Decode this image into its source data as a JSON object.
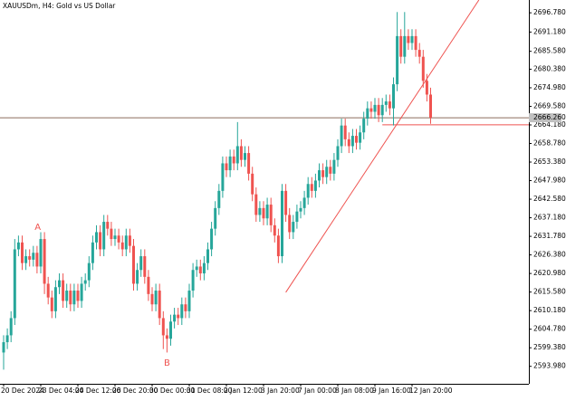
{
  "chart_data": {
    "type": "candlestick",
    "title": "XAUUSDm, H4:  Gold vs US Dollar",
    "up_color": "#26a69a",
    "down_color": "#ef5350",
    "open": [
      2598,
      2601,
      2603,
      2608,
      2628,
      2630,
      2624,
      2626,
      2625,
      2627,
      2623,
      2631,
      2618,
      2614,
      2610,
      2617,
      2619,
      2613,
      2616,
      2612,
      2616,
      2613,
      2618,
      2619,
      2624,
      2630,
      2633,
      2628,
      2636,
      2634,
      2631,
      2632,
      2630,
      2628,
      2632,
      2629,
      2618,
      2622,
      2626,
      2620,
      2615,
      2612,
      2616,
      2608,
      2603,
      2602,
      2607,
      2609,
      2608,
      2612,
      2610,
      2616,
      2622,
      2623,
      2621,
      2624,
      2628,
      2634,
      2640,
      2645,
      2653,
      2651,
      2655,
      2653,
      2658,
      2654,
      2656,
      2650,
      2644,
      2638,
      2640,
      2637,
      2641,
      2635,
      2632,
      2626,
      2645,
      2638,
      2633,
      2636,
      2639,
      2640,
      2643,
      2647,
      2645,
      2648,
      2651,
      2649,
      2652,
      2650,
      2654,
      2658,
      2664,
      2660,
      2658,
      2661,
      2659,
      2662,
      2666,
      2669,
      2668,
      2670,
      2667,
      2670,
      2671,
      2669,
      2676,
      2690,
      2684,
      2690,
      2688,
      2690,
      2686,
      2684,
      2677,
      2673
    ],
    "high": [
      2603,
      2605,
      2610,
      2631,
      2632,
      2632,
      2628,
      2628,
      2629,
      2629,
      2633,
      2633,
      2620,
      2616,
      2619,
      2621,
      2621,
      2618,
      2618,
      2618,
      2618,
      2620,
      2621,
      2626,
      2632,
      2635,
      2635,
      2638,
      2638,
      2636,
      2634,
      2634,
      2632,
      2634,
      2634,
      2631,
      2624,
      2628,
      2628,
      2622,
      2617,
      2618,
      2618,
      2610,
      2605,
      2609,
      2611,
      2611,
      2614,
      2614,
      2618,
      2624,
      2625,
      2625,
      2626,
      2630,
      2636,
      2642,
      2647,
      2655,
      2655,
      2657,
      2657,
      2665,
      2660,
      2658,
      2658,
      2652,
      2646,
      2642,
      2642,
      2643,
      2643,
      2637,
      2634,
      2647,
      2647,
      2640,
      2638,
      2641,
      2642,
      2645,
      2649,
      2649,
      2650,
      2653,
      2653,
      2654,
      2654,
      2656,
      2660,
      2666,
      2666,
      2662,
      2663,
      2663,
      2664,
      2668,
      2671,
      2671,
      2672,
      2672,
      2672,
      2673,
      2673,
      2678,
      2697,
      2692,
      2697,
      2692,
      2692,
      2692,
      2688,
      2686,
      2679,
      2675
    ],
    "low": [
      2593,
      2599,
      2601,
      2606,
      2626,
      2622,
      2622,
      2623,
      2623,
      2621,
      2621,
      2615,
      2612,
      2608,
      2608,
      2615,
      2611,
      2611,
      2610,
      2610,
      2611,
      2611,
      2616,
      2617,
      2622,
      2628,
      2626,
      2626,
      2632,
      2629,
      2629,
      2628,
      2626,
      2626,
      2627,
      2616,
      2616,
      2620,
      2618,
      2613,
      2610,
      2610,
      2606,
      2599,
      2598,
      2600,
      2605,
      2606,
      2606,
      2608,
      2608,
      2614,
      2620,
      2619,
      2619,
      2622,
      2626,
      2632,
      2638,
      2643,
      2649,
      2649,
      2651,
      2651,
      2652,
      2652,
      2648,
      2642,
      2636,
      2636,
      2635,
      2635,
      2633,
      2630,
      2624,
      2624,
      2636,
      2631,
      2631,
      2634,
      2637,
      2638,
      2641,
      2643,
      2643,
      2646,
      2647,
      2647,
      2648,
      2648,
      2652,
      2656,
      2658,
      2656,
      2656,
      2657,
      2657,
      2660,
      2664,
      2666,
      2666,
      2665,
      2665,
      2668,
      2667,
      2664,
      2674,
      2682,
      2682,
      2686,
      2686,
      2684,
      2682,
      2675,
      2671,
      2664.5
    ],
    "close": [
      2601,
      2603,
      2608,
      2628,
      2630,
      2624,
      2626,
      2625,
      2627,
      2623,
      2631,
      2618,
      2614,
      2610,
      2617,
      2619,
      2613,
      2616,
      2612,
      2616,
      2613,
      2618,
      2619,
      2624,
      2630,
      2633,
      2628,
      2636,
      2634,
      2631,
      2632,
      2630,
      2628,
      2632,
      2629,
      2618,
      2622,
      2626,
      2620,
      2615,
      2612,
      2616,
      2608,
      2603,
      2602,
      2607,
      2609,
      2608,
      2612,
      2610,
      2616,
      2622,
      2623,
      2621,
      2624,
      2628,
      2634,
      2640,
      2645,
      2653,
      2651,
      2655,
      2653,
      2658,
      2654,
      2656,
      2650,
      2644,
      2638,
      2640,
      2637,
      2641,
      2635,
      2632,
      2626,
      2645,
      2638,
      2633,
      2636,
      2639,
      2640,
      2643,
      2647,
      2645,
      2648,
      2651,
      2649,
      2652,
      2650,
      2654,
      2658,
      2664,
      2660,
      2658,
      2661,
      2659,
      2662,
      2666,
      2669,
      2668,
      2670,
      2667,
      2670,
      2671,
      2669,
      2676,
      2690,
      2684,
      2690,
      2688,
      2690,
      2686,
      2684,
      2677,
      2673,
      2666.3
    ],
    "ylim": [
      2588.9,
      2700.5
    ],
    "yticks": [
      {
        "value": 2696.78,
        "label": "2696.780"
      },
      {
        "value": 2691.18,
        "label": "2691.180"
      },
      {
        "value": 2685.58,
        "label": "2685.580"
      },
      {
        "value": 2680.38,
        "label": "2680.380"
      },
      {
        "value": 2674.98,
        "label": "2674.980"
      },
      {
        "value": 2669.58,
        "label": "2669.580"
      },
      {
        "value": 2664.18,
        "label": "2664.180"
      },
      {
        "value": 2658.78,
        "label": "2658.780"
      },
      {
        "value": 2653.38,
        "label": "2653.380"
      },
      {
        "value": 2647.98,
        "label": "2647.980"
      },
      {
        "value": 2642.58,
        "label": "2642.580"
      },
      {
        "value": 2637.18,
        "label": "2637.180"
      },
      {
        "value": 2631.78,
        "label": "2631.780"
      },
      {
        "value": 2626.38,
        "label": "2626.380"
      },
      {
        "value": 2620.98,
        "label": "2620.980"
      },
      {
        "value": 2615.58,
        "label": "2615.580"
      },
      {
        "value": 2610.18,
        "label": "2610.180"
      },
      {
        "value": 2604.78,
        "label": "2604.780"
      },
      {
        "value": 2599.38,
        "label": "2599.380"
      },
      {
        "value": 2593.98,
        "label": "2593.980"
      }
    ],
    "xticks": [
      {
        "value": 0,
        "label": "20 Dec 2024"
      },
      {
        "value": 10,
        "label": "23 Dec 04:00"
      },
      {
        "value": 20,
        "label": "24 Dec 12:00"
      },
      {
        "value": 30,
        "label": "26 Dec 20:00"
      },
      {
        "value": 40,
        "label": "30 Dec 00:00"
      },
      {
        "value": 50,
        "label": "31 Dec 08:00"
      },
      {
        "value": 60,
        "label": "2 Jan 12:00"
      },
      {
        "value": 70,
        "label": "3 Jan 20:00"
      },
      {
        "value": 80,
        "label": "7 Jan 00:00"
      },
      {
        "value": 90,
        "label": "8 Jan 08:00"
      },
      {
        "value": 100,
        "label": "9 Jan 16:00"
      },
      {
        "value": 110,
        "label": "12 Jan 20:00"
      }
    ],
    "last_price": {
      "value": 2666.26,
      "label": "2666.260"
    },
    "annotations": [
      {
        "text": "A",
        "index": 9.2,
        "price": 2634.5
      },
      {
        "text": "B",
        "index": 44,
        "price": 2595
      }
    ],
    "trendline": {
      "index": [
        76,
        128
      ],
      "price": [
        2615.5,
        2700.5
      ]
    },
    "level": {
      "index": 102,
      "price": 2664.2
    }
  }
}
